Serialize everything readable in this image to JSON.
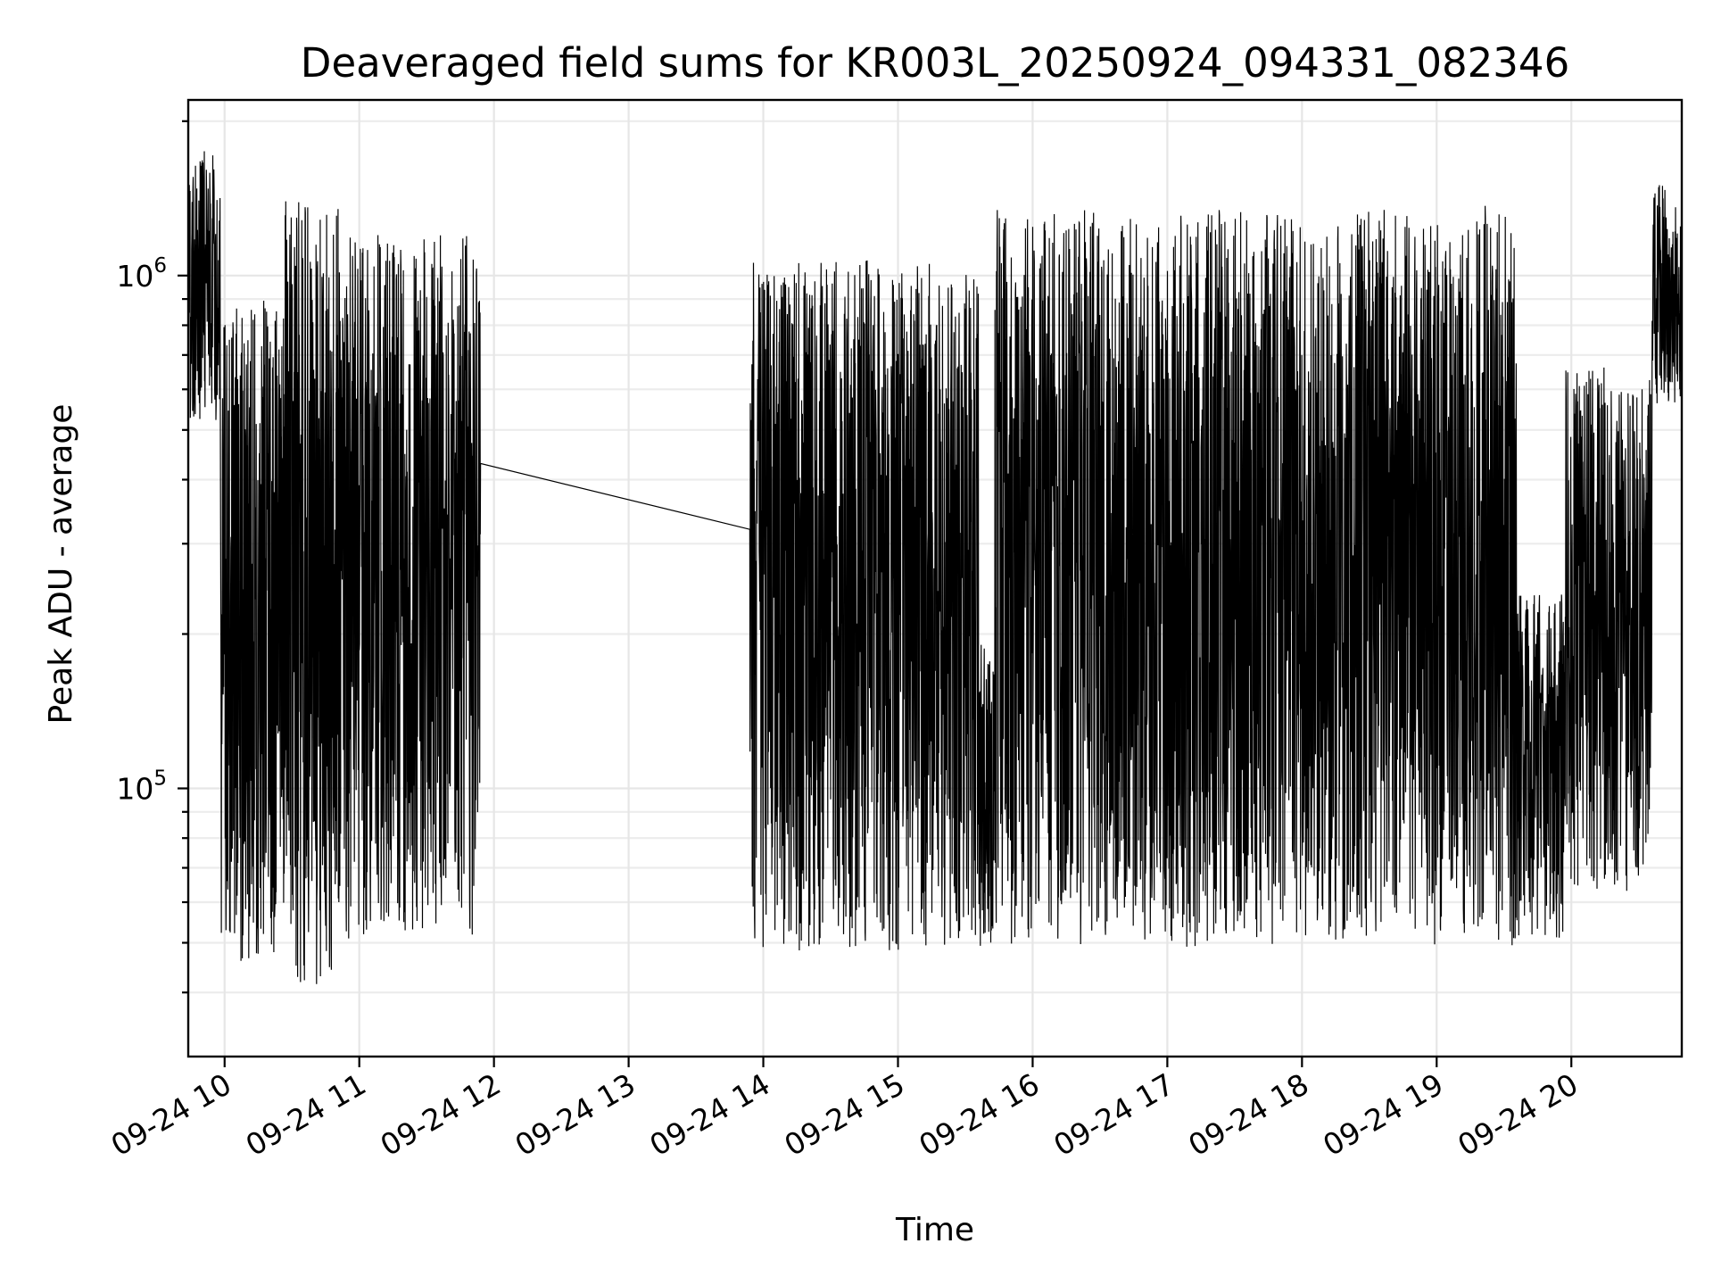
{
  "chart_data": {
    "type": "line",
    "title": "Deaveraged field sums for KR003L_20250924_094331_082346",
    "xlabel": "Time",
    "ylabel": "Peak ADU - average",
    "yscale": "log",
    "ylim": [
      30000,
      2200000
    ],
    "xlim_hours": [
      9.73,
      20.82
    ],
    "x_tick_hours": [
      10,
      11,
      12,
      13,
      14,
      15,
      16,
      17,
      18,
      19,
      20
    ],
    "x_tick_labels": [
      "09-24 10",
      "09-24 11",
      "09-24 12",
      "09-24 13",
      "09-24 14",
      "09-24 15",
      "09-24 16",
      "09-24 17",
      "09-24 18",
      "09-24 19",
      "09-24 20"
    ],
    "y_major_ticks": [
      100000,
      1000000
    ],
    "y_major_tick_labels": [
      "10^5",
      "10^6"
    ],
    "y_minor_ticks": [
      40000,
      50000,
      60000,
      70000,
      80000,
      90000,
      200000,
      300000,
      400000,
      500000,
      600000,
      700000,
      800000,
      900000,
      2000000
    ],
    "grid": true,
    "series_color": "#000000",
    "series": [
      {
        "name": "Peak ADU - average",
        "segments_approx": [
          {
            "from_hour": 9.73,
            "to_hour": 9.97,
            "low": 500000,
            "high": 1800000
          },
          {
            "from_hour": 9.97,
            "to_hour": 10.45,
            "low": 42000,
            "high": 950000
          },
          {
            "from_hour": 10.45,
            "to_hour": 10.85,
            "low": 37000,
            "high": 1600000
          },
          {
            "from_hour": 10.85,
            "to_hour": 11.9,
            "low": 48000,
            "high": 1300000
          },
          {
            "from_hour": 13.9,
            "to_hour": 15.6,
            "low": 45000,
            "high": 1150000
          },
          {
            "from_hour": 15.6,
            "to_hour": 15.72,
            "low": 45000,
            "high": 200000
          },
          {
            "from_hour": 15.72,
            "to_hour": 19.6,
            "low": 46000,
            "high": 1450000
          },
          {
            "from_hour": 19.6,
            "to_hour": 19.95,
            "low": 48000,
            "high": 250000
          },
          {
            "from_hour": 19.95,
            "to_hour": 20.6,
            "low": 60000,
            "high": 700000
          },
          {
            "from_hour": 20.6,
            "to_hour": 20.82,
            "low": 550000,
            "high": 1550000
          }
        ],
        "gap": {
          "from_hour": 11.9,
          "to_hour": 13.9,
          "from_value": 430000,
          "to_value": 320000
        }
      }
    ]
  }
}
